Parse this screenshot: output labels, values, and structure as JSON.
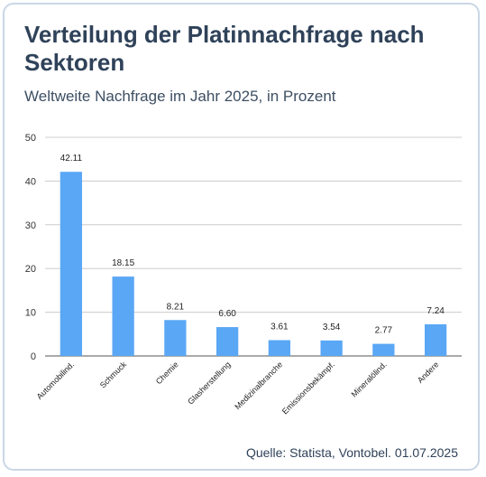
{
  "header": {
    "title": "Verteilung der Platinnachfrage nach Sektoren",
    "subtitle": "Weltweite Nachfrage im Jahr 2025, in Prozent"
  },
  "footer": {
    "source": "Quelle: Statista, Vontobel. 01.07.2025"
  },
  "colors": {
    "bar": "#5aa7f5",
    "grid": "#cccccc",
    "title": "#2f4259"
  },
  "chart_data": {
    "type": "bar",
    "title": "Verteilung der Platinnachfrage nach Sektoren",
    "subtitle": "Weltweite Nachfrage im Jahr 2025, in Prozent",
    "xlabel": "",
    "ylabel": "",
    "categories": [
      "Automobilind.",
      "Schmuck",
      "Chemie",
      "Glasherstellung",
      "Medizinalbranche",
      "Emissionsbekämpf.",
      "Mineralölind.",
      "Andere"
    ],
    "values": [
      42.11,
      18.15,
      8.21,
      6.6,
      3.61,
      3.54,
      2.77,
      7.24
    ],
    "data_labels": [
      "42.11",
      "18.15",
      "8.21",
      "6.60",
      "3.61",
      "3.54",
      "2.77",
      "7.24"
    ],
    "ylim": [
      0,
      50
    ],
    "yticks": [
      0,
      10,
      20,
      30,
      40,
      50
    ],
    "grid": true,
    "legend": "none"
  }
}
